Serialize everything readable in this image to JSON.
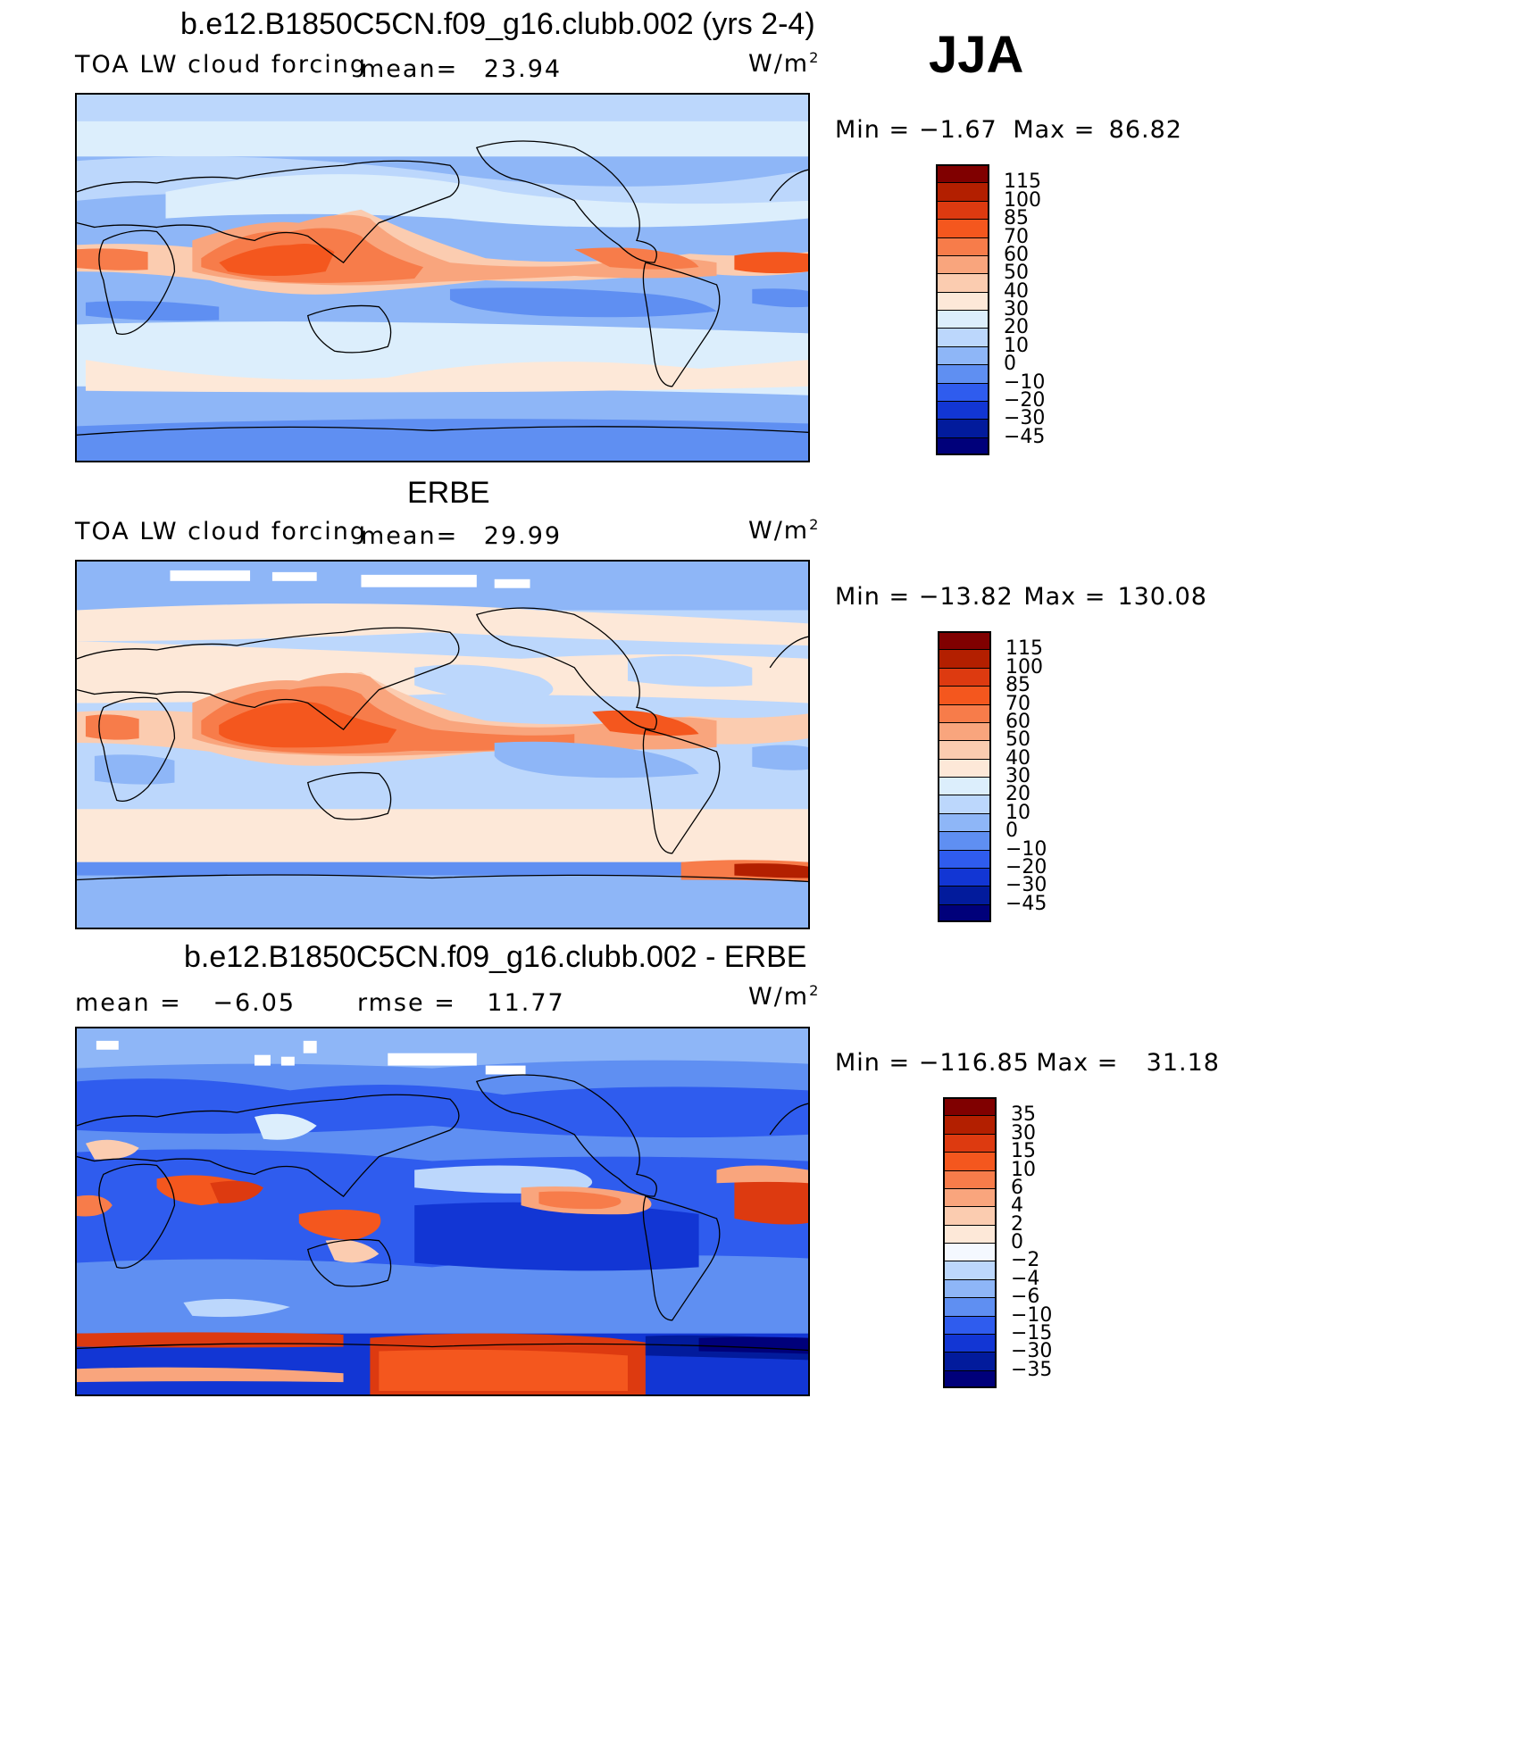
{
  "season": "JJA",
  "panels": [
    {
      "title": "b.e12.B1850C5CN.f09_g16.clubb.002 (yrs 2-4)",
      "left_label": "TOA LW cloud forcing",
      "stat1_label": "mean=",
      "stat1_value": "23.94",
      "unit_base": "W/m",
      "unit_exp": "2",
      "min_label": "Min =",
      "min_value": "−1.67",
      "max_label": "Max =",
      "max_value": "86.82",
      "colorbar_labels": [
        "115",
        "100",
        "85",
        "70",
        "60",
        "50",
        "40",
        "30",
        "20",
        "10",
        "0",
        "−10",
        "−20",
        "−30",
        "−45"
      ]
    },
    {
      "title": "ERBE",
      "left_label": "TOA LW cloud forcing",
      "stat1_label": "mean=",
      "stat1_value": "29.99",
      "unit_base": "W/m",
      "unit_exp": "2",
      "min_label": "Min =",
      "min_value": "−13.82",
      "max_label": "Max =",
      "max_value": "130.08",
      "colorbar_labels": [
        "115",
        "100",
        "85",
        "70",
        "60",
        "50",
        "40",
        "30",
        "20",
        "10",
        "0",
        "−10",
        "−20",
        "−30",
        "−45"
      ]
    },
    {
      "title": "b.e12.B1850C5CN.f09_g16.clubb.002 - ERBE",
      "left_label": "mean =",
      "left_value": "−6.05",
      "stat1_label": "rmse =",
      "stat1_value": "11.77",
      "unit_base": "W/m",
      "unit_exp": "2",
      "min_label": "Min =",
      "min_value": "−116.85",
      "max_label": "Max =",
      "max_value": "31.18",
      "colorbar_labels": [
        "35",
        "30",
        "15",
        "10",
        "6",
        "4",
        "2",
        "0",
        "−2",
        "−4",
        "−6",
        "−10",
        "−15",
        "−30",
        "−35"
      ]
    }
  ],
  "colors": {
    "abs_scale": [
      "#800000",
      "#b31f00",
      "#dd3a10",
      "#f4571e",
      "#f77c4a",
      "#f9a57d",
      "#fbccb0",
      "#fde8d8",
      "#dceefc",
      "#bcd7fc",
      "#8eb6f7",
      "#5f8ff2",
      "#2f5cee",
      "#1236d4",
      "#021b9c",
      "#00007a"
    ],
    "diff_scale": [
      "#800000",
      "#b31f00",
      "#dd3a10",
      "#f4571e",
      "#f77c4a",
      "#f9a57d",
      "#fbccb0",
      "#fde8d8",
      "#f4f8ff",
      "#bcd7fc",
      "#8eb6f7",
      "#5f8ff2",
      "#2f5cee",
      "#1236d4",
      "#021b9c",
      "#00007a"
    ]
  }
}
